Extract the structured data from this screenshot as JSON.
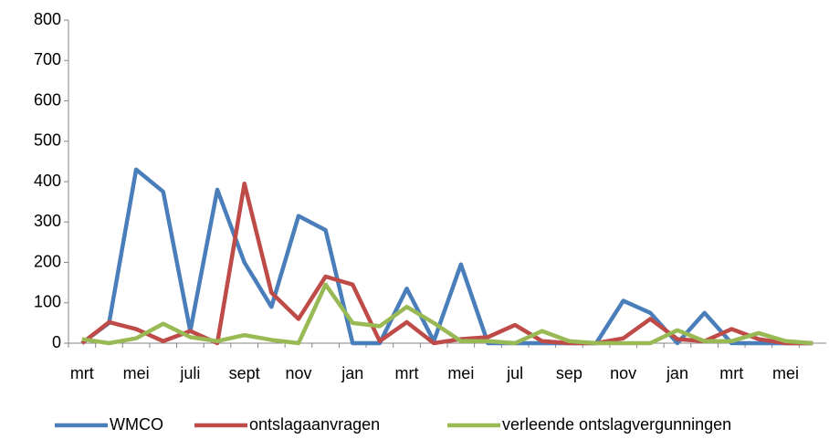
{
  "chart_data": {
    "type": "line",
    "categories": [
      "mrt",
      null,
      "mei",
      null,
      "juli",
      null,
      "sept",
      null,
      "nov",
      null,
      "jan",
      null,
      "mrt",
      null,
      "mei",
      null,
      "jul",
      null,
      "sep",
      null,
      "nov",
      null,
      "jan",
      null,
      "mrt",
      null,
      "mei",
      null
    ],
    "series": [
      {
        "name": "WMCO",
        "color": "#4a7ebb",
        "values": [
          0,
          50,
          430,
          375,
          30,
          380,
          200,
          90,
          315,
          280,
          0,
          0,
          135,
          5,
          195,
          0,
          0,
          0,
          0,
          0,
          105,
          75,
          0,
          75,
          0,
          0,
          0,
          0
        ]
      },
      {
        "name": "ontslagaanvragen",
        "color": "#be4b48",
        "values": [
          0,
          52,
          35,
          5,
          30,
          0,
          395,
          125,
          60,
          165,
          145,
          5,
          52,
          0,
          10,
          15,
          45,
          5,
          0,
          0,
          12,
          60,
          10,
          5,
          35,
          10,
          0,
          0
        ]
      },
      {
        "name": "verleende ontslagvergunningen",
        "color": "#98b954",
        "values": [
          10,
          0,
          12,
          48,
          15,
          5,
          20,
          8,
          0,
          145,
          50,
          42,
          90,
          50,
          5,
          5,
          0,
          30,
          5,
          0,
          0,
          0,
          32,
          5,
          5,
          25,
          5,
          0
        ]
      }
    ],
    "ylim": [
      0,
      800
    ],
    "yticks": [
      0,
      100,
      200,
      300,
      400,
      500,
      600,
      700,
      800
    ],
    "grid": false,
    "legend": "bottom"
  }
}
